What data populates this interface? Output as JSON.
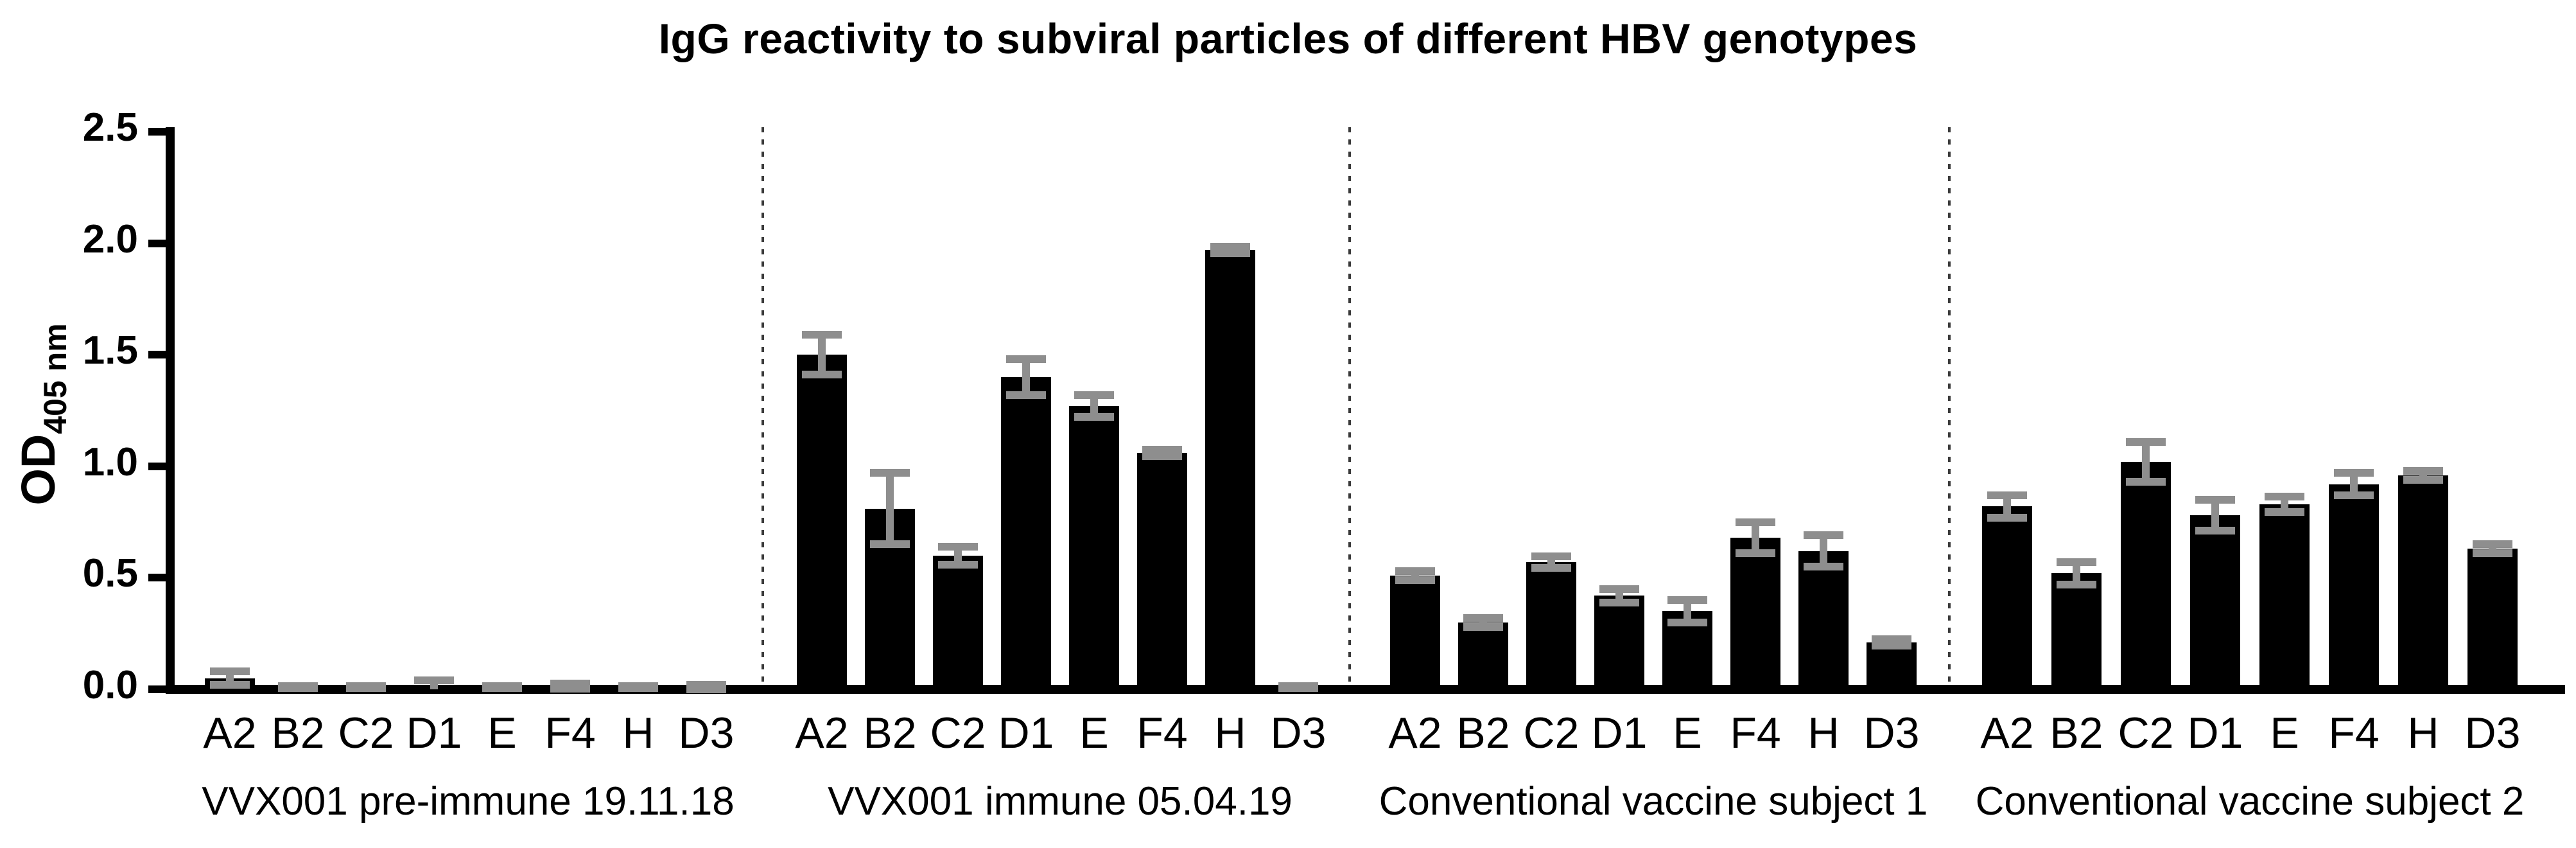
{
  "chart_data": {
    "type": "bar",
    "title": "IgG reactivity to subviral particles of different HBV genotypes",
    "ylabel": "OD",
    "ylabel_subscript": "405 nm",
    "ylim": [
      0,
      2.5
    ],
    "yticks": [
      "0.0",
      "0.5",
      "1.0",
      "1.5",
      "2.0",
      "2.5"
    ],
    "grid": false,
    "legend": null,
    "bar_color": "#000000",
    "error_color": "#8e8e8e",
    "axis_color": "#000000",
    "separator_color": "#3a3a3a",
    "categories": [
      "A2",
      "B2",
      "C2",
      "D1",
      "E",
      "F4",
      "H",
      "D3"
    ],
    "groups": [
      {
        "label": "VVX001 pre-immune 19.11.18",
        "values": [
          0.05,
          0.01,
          0.01,
          0.01,
          0.01,
          0.015,
          0.01,
          0.01
        ],
        "errors": [
          0.03,
          0.005,
          0.005,
          0.03,
          0.005,
          0.012,
          0.005,
          0.01
        ]
      },
      {
        "label": "VVX001 immune 05.04.19",
        "values": [
          1.5,
          0.81,
          0.6,
          1.4,
          1.27,
          1.06,
          1.97,
          0.01
        ],
        "errors": [
          0.09,
          0.16,
          0.04,
          0.08,
          0.05,
          0.015,
          0.015,
          0.005
        ]
      },
      {
        "label": "Conventional vaccine subject 1",
        "values": [
          0.51,
          0.3,
          0.57,
          0.42,
          0.35,
          0.68,
          0.62,
          0.21
        ],
        "errors": [
          0.02,
          0.02,
          0.025,
          0.03,
          0.05,
          0.07,
          0.07,
          0.015
        ]
      },
      {
        "label": "Conventional vaccine subject 2",
        "values": [
          0.82,
          0.52,
          1.02,
          0.78,
          0.83,
          0.92,
          0.96,
          0.63
        ],
        "errors": [
          0.05,
          0.05,
          0.09,
          0.07,
          0.035,
          0.05,
          0.02,
          0.02
        ]
      }
    ]
  }
}
